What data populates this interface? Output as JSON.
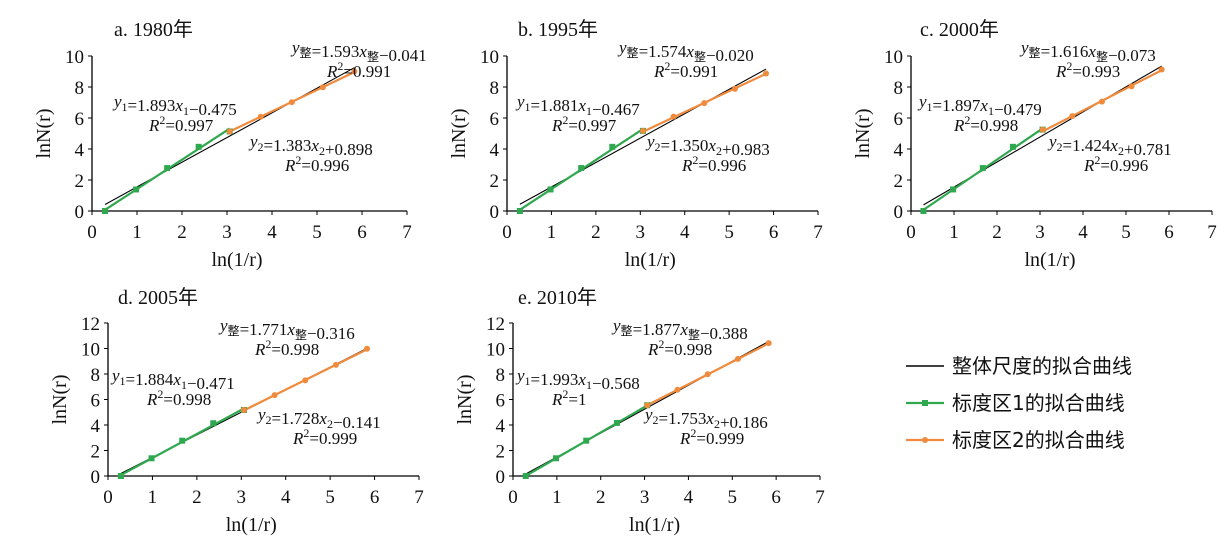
{
  "legend": [
    {
      "label": "整体尺度的拟合曲线",
      "color": "#000000",
      "marker": false
    },
    {
      "label": "标度区1的拟合曲线",
      "color": "#2fa84f",
      "marker": "square"
    },
    {
      "label": "标度区2的拟合曲线",
      "color": "#f08a3c",
      "marker": "circle"
    }
  ],
  "colors": {
    "overall": "#000000",
    "region1": "#2fa84f",
    "region2": "#f08a3c",
    "point_overall": "#8a8a8a"
  },
  "chart_data": [
    {
      "type": "line",
      "title": "a. 1980年",
      "xlabel": "ln(1/r)",
      "ylabel": "lnN(r)",
      "xlim": [
        0,
        7
      ],
      "ylim": [
        0,
        10
      ],
      "xticks": [
        "0",
        "1",
        "2",
        "3",
        "4",
        "5",
        "6",
        "7"
      ],
      "yticks": [
        "0",
        "2",
        "4",
        "6",
        "8",
        "10"
      ],
      "x": [
        0.29,
        0.98,
        1.67,
        2.37,
        3.06,
        3.75,
        4.44,
        5.13,
        5.83
      ],
      "y": [
        0,
        1.39,
        2.77,
        4.14,
        5.13,
        6.08,
        7.02,
        7.98,
        9.01
      ],
      "fits": {
        "overall": {
          "equation": "y整=1.593x整−0.041",
          "r2": "R²=0.991",
          "slope": 1.593,
          "intercept": -0.041,
          "range": [
            0.29,
            5.83
          ]
        },
        "region1": {
          "equation": "y1=1.893x1−0.475",
          "r2": "R²=0.997",
          "slope": 1.893,
          "intercept": -0.475,
          "range": [
            0.29,
            3.06
          ]
        },
        "region2": {
          "equation": "y2=1.383x2+0.898",
          "r2": "R²=0.996",
          "slope": 1.383,
          "intercept": 0.898,
          "range": [
            3.06,
            5.83
          ]
        }
      }
    },
    {
      "type": "line",
      "title": "b. 1995年",
      "xlabel": "ln(1/r)",
      "ylabel": "lnN(r)",
      "xlim": [
        0,
        7
      ],
      "ylim": [
        0,
        10
      ],
      "xticks": [
        "0",
        "1",
        "2",
        "3",
        "4",
        "5",
        "6",
        "7"
      ],
      "yticks": [
        "0",
        "2",
        "4",
        "6",
        "8",
        "10"
      ],
      "x": [
        0.29,
        0.98,
        1.67,
        2.37,
        3.06,
        3.75,
        4.44,
        5.13,
        5.83
      ],
      "y": [
        0,
        1.39,
        2.77,
        4.14,
        5.17,
        6.09,
        6.96,
        7.88,
        8.87
      ],
      "fits": {
        "overall": {
          "equation": "y整=1.574x整−0.020",
          "r2": "R²=0.991",
          "slope": 1.574,
          "intercept": -0.02,
          "range": [
            0.29,
            5.83
          ]
        },
        "region1": {
          "equation": "y1=1.881x1−0.467",
          "r2": "R²=0.997",
          "slope": 1.881,
          "intercept": -0.467,
          "range": [
            0.29,
            3.06
          ]
        },
        "region2": {
          "equation": "y2=1.350x2+0.983",
          "r2": "R²=0.996",
          "slope": 1.35,
          "intercept": 0.983,
          "range": [
            3.06,
            5.83
          ]
        }
      }
    },
    {
      "type": "line",
      "title": "c. 2000年",
      "xlabel": "ln(1/r)",
      "ylabel": "lnN(r)",
      "xlim": [
        0,
        7
      ],
      "ylim": [
        0,
        10
      ],
      "xticks": [
        "0",
        "1",
        "2",
        "3",
        "4",
        "5",
        "6",
        "7"
      ],
      "yticks": [
        "0",
        "2",
        "4",
        "6",
        "8",
        "10"
      ],
      "x": [
        0.29,
        0.98,
        1.67,
        2.37,
        3.06,
        3.75,
        4.44,
        5.13,
        5.83
      ],
      "y": [
        0,
        1.39,
        2.77,
        4.14,
        5.25,
        6.12,
        7.06,
        8.04,
        9.13
      ],
      "fits": {
        "overall": {
          "equation": "y整=1.616x整−0.073",
          "r2": "R²=0.993",
          "slope": 1.616,
          "intercept": -0.073,
          "range": [
            0.29,
            5.83
          ]
        },
        "region1": {
          "equation": "y1=1.897x1−0.479",
          "r2": "R²=0.998",
          "slope": 1.897,
          "intercept": -0.479,
          "range": [
            0.29,
            3.06
          ]
        },
        "region2": {
          "equation": "y2=1.424x2+0.781",
          "r2": "R²=0.996",
          "slope": 1.424,
          "intercept": 0.781,
          "range": [
            3.06,
            5.83
          ]
        }
      }
    },
    {
      "type": "line",
      "title": "d. 2005年",
      "xlabel": "ln(1/r)",
      "ylabel": "lnN(r)",
      "xlim": [
        0,
        7
      ],
      "ylim": [
        0,
        12
      ],
      "xticks": [
        "0",
        "1",
        "2",
        "3",
        "4",
        "5",
        "6",
        "7"
      ],
      "yticks": [
        "0",
        "2",
        "4",
        "6",
        "8",
        "10",
        "12"
      ],
      "x": [
        0.29,
        0.98,
        1.67,
        2.37,
        3.06,
        3.75,
        4.44,
        5.13,
        5.83
      ],
      "y": [
        0,
        1.39,
        2.77,
        4.14,
        5.18,
        6.34,
        7.5,
        8.72,
        9.98
      ],
      "fits": {
        "overall": {
          "equation": "y整=1.771x整−0.316",
          "r2": "R²=0.998",
          "slope": 1.771,
          "intercept": -0.316,
          "range": [
            0.29,
            5.83
          ]
        },
        "region1": {
          "equation": "y1=1.884x1−0.471",
          "r2": "R²=0.998",
          "slope": 1.884,
          "intercept": -0.471,
          "range": [
            0.29,
            3.06
          ]
        },
        "region2": {
          "equation": "y2=1.728x2−0.141",
          "r2": "R²=0.999",
          "slope": 1.728,
          "intercept": -0.141,
          "range": [
            3.06,
            5.83
          ]
        }
      }
    },
    {
      "type": "line",
      "title": "e. 2010年",
      "xlabel": "ln(1/r)",
      "ylabel": "lnN(r)",
      "xlim": [
        0,
        7
      ],
      "ylim": [
        0,
        12
      ],
      "xticks": [
        "0",
        "1",
        "2",
        "3",
        "4",
        "5",
        "6",
        "7"
      ],
      "yticks": [
        "0",
        "2",
        "4",
        "6",
        "8",
        "10",
        "12"
      ],
      "x": [
        0.29,
        0.98,
        1.67,
        2.37,
        3.06,
        3.75,
        4.44,
        5.13,
        5.83
      ],
      "y": [
        0,
        1.39,
        2.77,
        4.16,
        5.55,
        6.76,
        7.98,
        9.19,
        10.42
      ],
      "fits": {
        "overall": {
          "equation": "y整=1.877x整−0.388",
          "r2": "R²=0.998",
          "slope": 1.877,
          "intercept": -0.388,
          "range": [
            0.29,
            5.83
          ]
        },
        "region1": {
          "equation": "y1=1.993x1−0.568",
          "r2": "R²=1",
          "slope": 1.993,
          "intercept": -0.568,
          "range": [
            0.29,
            3.06
          ]
        },
        "region2": {
          "equation": "y2=1.753x2+0.186",
          "r2": "R²=0.999",
          "slope": 1.753,
          "intercept": 0.186,
          "range": [
            3.06,
            5.83
          ]
        }
      }
    }
  ]
}
